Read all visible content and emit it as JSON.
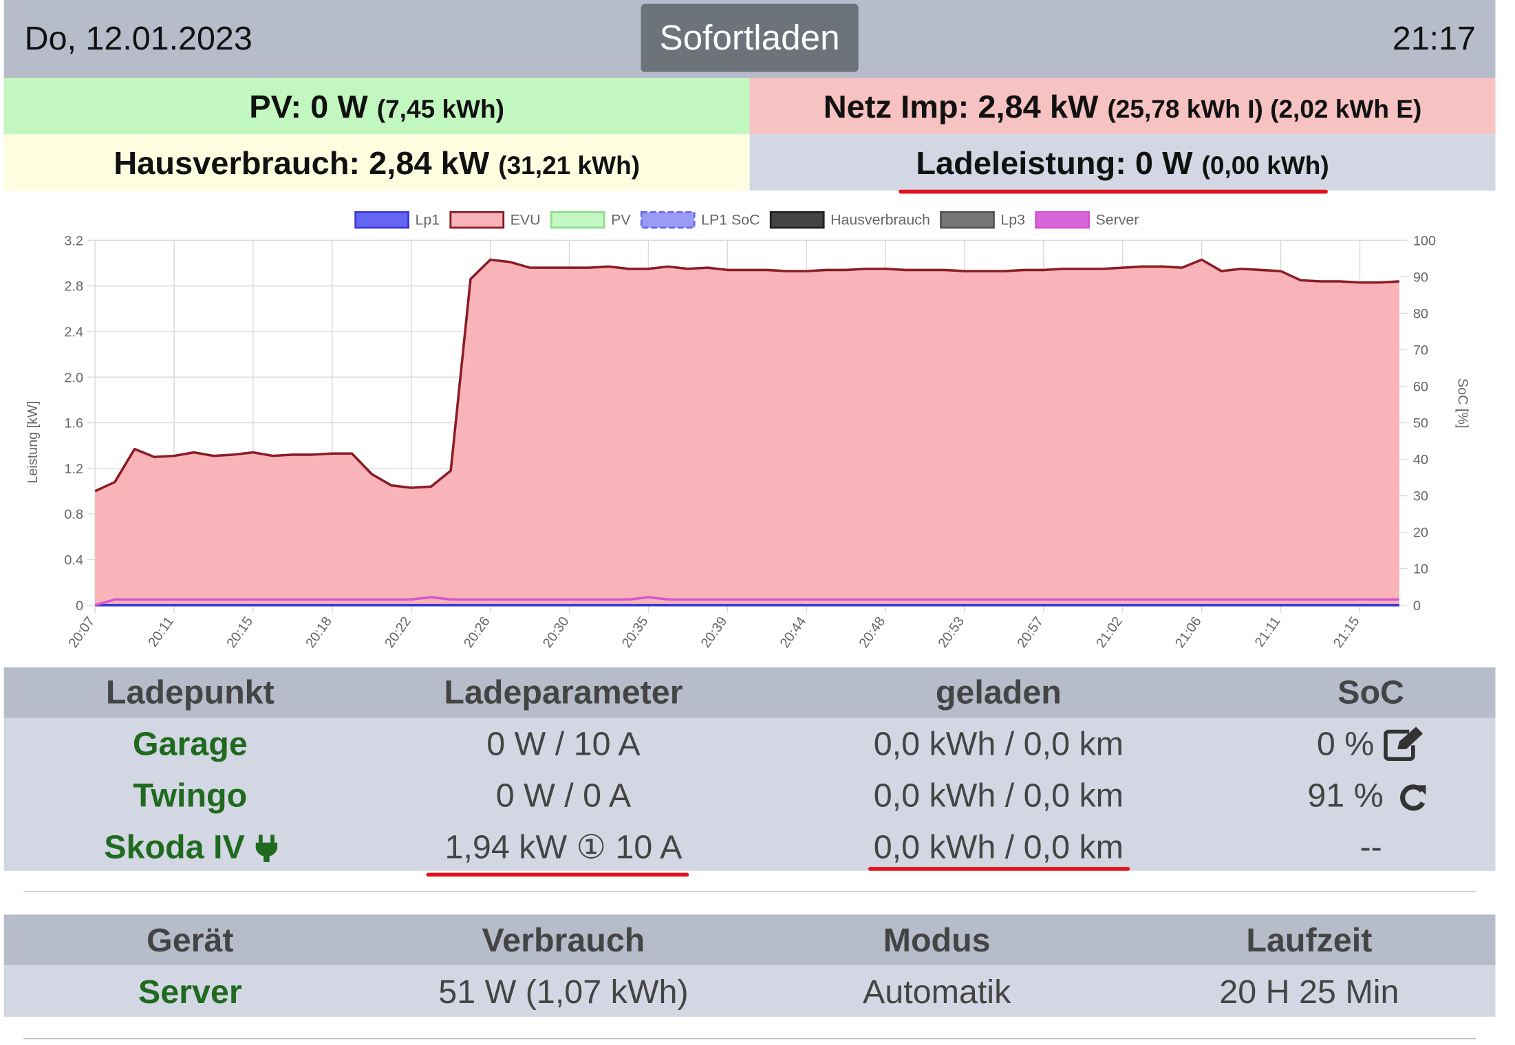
{
  "header": {
    "date": "Do, 12.01.2023",
    "mode_button": "Sofortladen",
    "time": "21:17"
  },
  "summary": {
    "pv": {
      "label": "PV: 0 W",
      "detail": "(7,45 kWh)"
    },
    "grid": {
      "label": "Netz Imp: 2,84 kW",
      "detail": "(25,78 kWh I) (2,02 kWh E)"
    },
    "house": {
      "label": "Hausverbrauch: 2,84 kW",
      "detail": "(31,21 kWh)"
    },
    "charge": {
      "label": "Ladeleistung: 0 W",
      "detail": "(0,00 kWh)"
    }
  },
  "chart_data": {
    "type": "line",
    "y_label": "Leistung [kW]",
    "y2_label": "SoC [%]",
    "grid": true,
    "legend": "top",
    "categories": [
      "20:07",
      null,
      null,
      null,
      "20:11",
      null,
      null,
      null,
      "20:15",
      null,
      null,
      null,
      "20:18",
      null,
      null,
      null,
      "20:22",
      null,
      null,
      null,
      "20:26",
      null,
      null,
      null,
      "20:30",
      null,
      null,
      null,
      "20:35",
      null,
      null,
      null,
      "20:39",
      null,
      null,
      null,
      "20:44",
      null,
      null,
      null,
      "20:48",
      null,
      null,
      null,
      "20:53",
      null,
      null,
      null,
      "20:57",
      null,
      null,
      null,
      "21:02",
      null,
      null,
      null,
      "21:06",
      null,
      null,
      null,
      "21:11",
      null,
      null,
      null,
      "21:15",
      null,
      null
    ],
    "ylim": [
      0,
      3.2
    ],
    "yticks": [
      0,
      0.4,
      0.8,
      1.2,
      1.6,
      {
        "value": 2,
        "label": "2.0"
      },
      2.4,
      2.8,
      3.2
    ],
    "y2lim": [
      0,
      100
    ],
    "y2ticks": [
      0,
      10,
      20,
      30,
      40,
      50,
      60,
      70,
      80,
      90,
      100
    ],
    "series": [
      {
        "name": "Lp1",
        "color": "#3b3bd6",
        "fill": "#6464f5",
        "values": [
          0,
          0,
          0,
          0,
          0,
          0,
          0,
          0,
          0,
          0,
          0,
          0,
          0,
          0,
          0,
          0,
          0,
          0,
          0,
          0,
          0,
          0,
          0,
          0,
          0,
          0,
          0,
          0,
          0,
          0,
          0,
          0,
          0,
          0,
          0,
          0,
          0,
          0,
          0,
          0,
          0,
          0,
          0,
          0,
          0,
          0,
          0,
          0,
          0,
          0,
          0,
          0,
          0,
          0,
          0,
          0,
          0,
          0,
          0,
          0,
          0,
          0,
          0,
          0,
          0,
          0,
          0
        ]
      },
      {
        "name": "EVU",
        "color": "#8b1c24",
        "fill": "#f8b4b8",
        "area": true,
        "values": [
          1.0,
          1.08,
          1.37,
          1.3,
          1.31,
          1.34,
          1.31,
          1.32,
          1.34,
          1.31,
          1.32,
          1.32,
          1.33,
          1.33,
          1.15,
          1.05,
          1.03,
          1.04,
          1.18,
          2.86,
          3.03,
          3.01,
          2.96,
          2.96,
          2.96,
          2.96,
          2.97,
          2.95,
          2.95,
          2.97,
          2.95,
          2.96,
          2.94,
          2.94,
          2.94,
          2.93,
          2.93,
          2.94,
          2.94,
          2.95,
          2.95,
          2.94,
          2.94,
          2.94,
          2.93,
          2.93,
          2.93,
          2.94,
          2.94,
          2.95,
          2.95,
          2.95,
          2.96,
          2.97,
          2.97,
          2.96,
          3.03,
          2.93,
          2.95,
          2.94,
          2.93,
          2.85,
          2.84,
          2.84,
          2.83,
          2.83,
          2.84
        ]
      },
      {
        "name": "PV",
        "color": "#8fe08f",
        "fill": "#c4f7c4"
      },
      {
        "name": "LP1 SoC",
        "color": "#6a6af0",
        "fill": "#9a9af7",
        "dashed": true
      },
      {
        "name": "Hausverbrauch",
        "color": "#222222",
        "fill": "#444444"
      },
      {
        "name": "Lp3",
        "color": "#555555",
        "fill": "#777777"
      },
      {
        "name": "Server",
        "color": "#d455d4",
        "fill": "#d866d8",
        "values": [
          0,
          0.05,
          0.05,
          0.05,
          0.05,
          0.05,
          0.05,
          0.05,
          0.05,
          0.05,
          0.05,
          0.05,
          0.05,
          0.05,
          0.05,
          0.05,
          0.05,
          0.07,
          0.05,
          0.05,
          0.05,
          0.05,
          0.05,
          0.05,
          0.05,
          0.05,
          0.05,
          0.05,
          0.07,
          0.05,
          0.05,
          0.05,
          0.05,
          0.05,
          0.05,
          0.05,
          0.05,
          0.05,
          0.05,
          0.05,
          0.05,
          0.05,
          0.05,
          0.05,
          0.05,
          0.05,
          0.05,
          0.05,
          0.05,
          0.05,
          0.05,
          0.05,
          0.05,
          0.05,
          0.05,
          0.05,
          0.05,
          0.05,
          0.05,
          0.05,
          0.05,
          0.05,
          0.05,
          0.05,
          0.05,
          0.05,
          0.05
        ]
      }
    ]
  },
  "charge_points": {
    "columns": [
      "Ladepunkt",
      "Ladeparameter",
      "geladen",
      "SoC"
    ],
    "rows": [
      [
        "Garage",
        "0 W / 10 A",
        "0,0 kWh / 0,0 km",
        "0 %"
      ],
      [
        "Twingo",
        "0 W / 0 A",
        "0,0 kWh / 0,0 km",
        "91 %"
      ],
      [
        "Skoda IV",
        "1,94 kW ① 10 A",
        "0,0 kWh / 0,0 km",
        "--"
      ]
    ]
  },
  "devices": {
    "columns": [
      "Gerät",
      "Verbrauch",
      "Modus",
      "Laufzeit"
    ],
    "rows": [
      [
        "Server",
        "51 W (1,07 kWh)",
        "Automatik",
        "20 H 25 Min"
      ]
    ]
  }
}
